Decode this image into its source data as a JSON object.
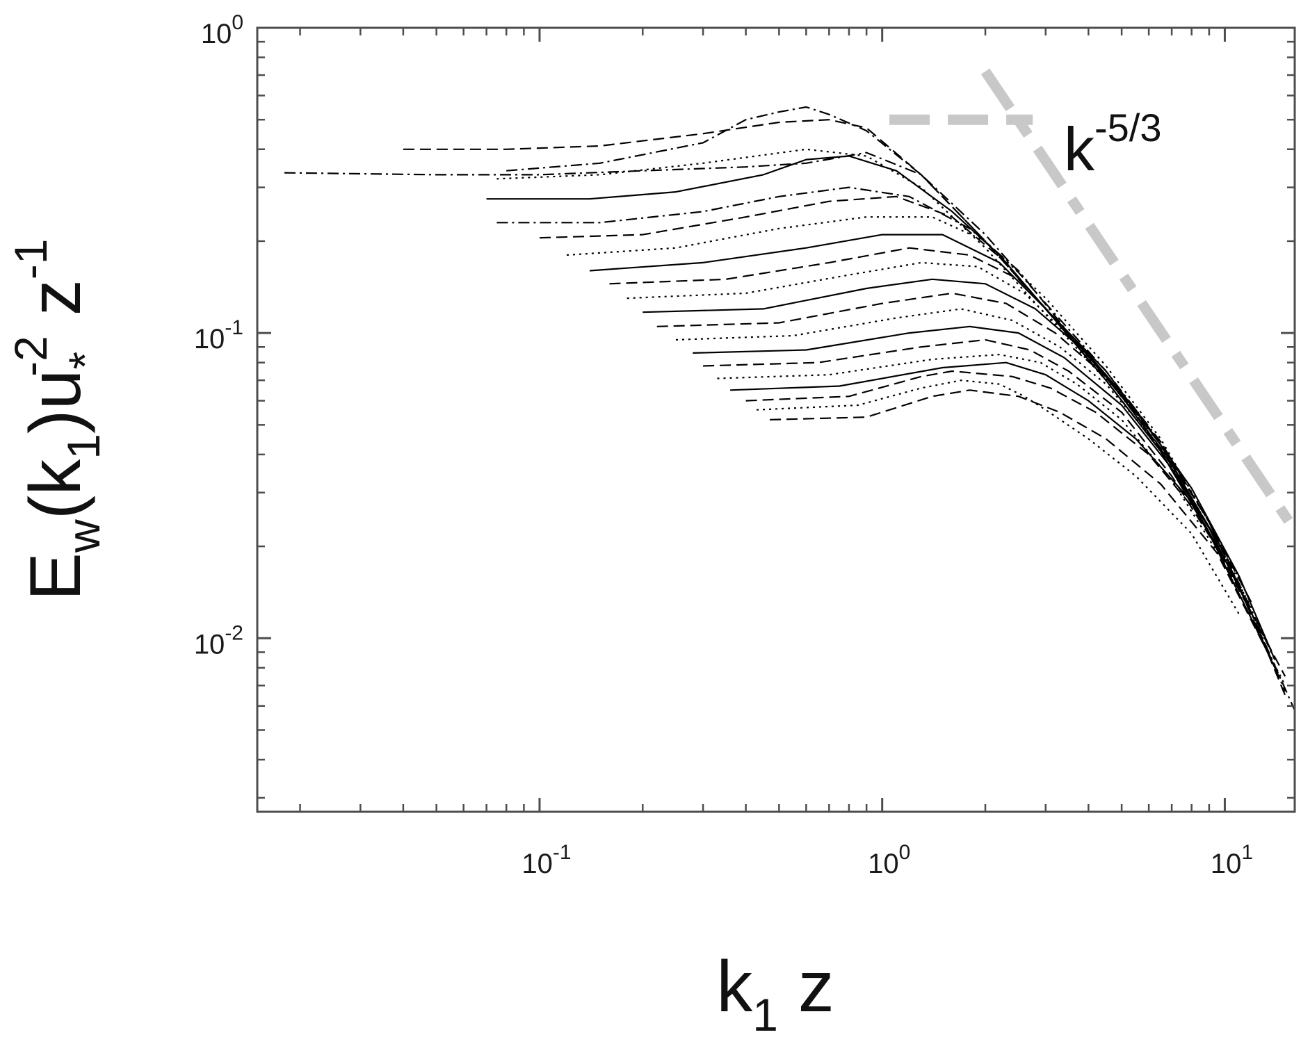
{
  "chart_data": {
    "type": "line",
    "x_scale": "log",
    "y_scale": "log",
    "xlim": [
      0.015,
      16
    ],
    "ylim": [
      0.0027,
      1
    ],
    "x_ticks": [
      {
        "value": 0.1,
        "base": "10",
        "exp": "-1"
      },
      {
        "value": 1,
        "base": "10",
        "exp": "0"
      },
      {
        "value": 10,
        "base": "10",
        "exp": "1"
      }
    ],
    "y_ticks": [
      {
        "value": 0.01,
        "base": "10",
        "exp": "-2"
      },
      {
        "value": 0.1,
        "base": "10",
        "exp": "-1"
      },
      {
        "value": 1,
        "base": "10",
        "exp": "0"
      }
    ],
    "grid": false,
    "xlabel": {
      "main": "k",
      "sub": "1",
      "tail": " z"
    },
    "ylabel": {
      "p1": "E",
      "s1": "w",
      "p2": "(k",
      "s2": "1",
      "p3": ")u",
      "s3": "*",
      "e3": "-2",
      "p4": " z",
      "e4": "-1"
    },
    "annotation": {
      "base": "k",
      "exp": "-5/3"
    },
    "reference_line": {
      "slope": -1.6667,
      "color": "#c8c8c8",
      "points": [
        {
          "x": 2.0,
          "y": 0.72
        },
        {
          "x": 16.0,
          "y": 0.0226
        }
      ]
    },
    "reference_level": {
      "color": "#c8c8c8",
      "points": [
        {
          "x": 1.05,
          "y": 0.5
        },
        {
          "x": 2.75,
          "y": 0.5
        }
      ]
    },
    "series_color": "#000000",
    "series": [
      {
        "dash": "dashdot",
        "values": [
          [
            0.018,
            0.335
          ],
          [
            0.05,
            0.33
          ],
          [
            0.1,
            0.33
          ],
          [
            0.2,
            0.34
          ],
          [
            0.4,
            0.35
          ],
          [
            0.6,
            0.36
          ],
          [
            0.9,
            0.39
          ],
          [
            1.3,
            0.33
          ],
          [
            2.0,
            0.21
          ],
          [
            3.0,
            0.125
          ],
          [
            4.5,
            0.075
          ],
          [
            6.5,
            0.044
          ],
          [
            9.0,
            0.024
          ],
          [
            12.0,
            0.012
          ],
          [
            16.0,
            0.0058
          ]
        ]
      },
      {
        "dash": "dashed",
        "values": [
          [
            0.04,
            0.4
          ],
          [
            0.08,
            0.4
          ],
          [
            0.15,
            0.41
          ],
          [
            0.3,
            0.45
          ],
          [
            0.5,
            0.49
          ],
          [
            0.7,
            0.5
          ],
          [
            0.9,
            0.47
          ],
          [
            1.3,
            0.33
          ],
          [
            2.0,
            0.2
          ],
          [
            3.0,
            0.12
          ],
          [
            4.5,
            0.073
          ],
          [
            6.5,
            0.043
          ],
          [
            9.0,
            0.024
          ],
          [
            12.0,
            0.012
          ],
          [
            15.0,
            0.0065
          ]
        ]
      },
      {
        "dash": "dashdot",
        "values": [
          [
            0.08,
            0.34
          ],
          [
            0.15,
            0.36
          ],
          [
            0.3,
            0.42
          ],
          [
            0.4,
            0.5
          ],
          [
            0.5,
            0.53
          ],
          [
            0.6,
            0.55
          ],
          [
            0.7,
            0.52
          ],
          [
            0.9,
            0.46
          ],
          [
            1.3,
            0.33
          ],
          [
            2.0,
            0.2
          ],
          [
            3.0,
            0.12
          ],
          [
            4.5,
            0.072
          ],
          [
            6.5,
            0.042
          ],
          [
            9.0,
            0.023
          ],
          [
            12.0,
            0.012
          ],
          [
            15.0,
            0.0067
          ]
        ]
      },
      {
        "dash": "dotted",
        "values": [
          [
            0.075,
            0.32
          ],
          [
            0.15,
            0.33
          ],
          [
            0.3,
            0.36
          ],
          [
            0.6,
            0.4
          ],
          [
            0.9,
            0.38
          ],
          [
            1.3,
            0.3
          ],
          [
            2.0,
            0.19
          ],
          [
            3.0,
            0.115
          ],
          [
            4.5,
            0.07
          ],
          [
            6.5,
            0.041
          ],
          [
            9.0,
            0.022
          ],
          [
            12.0,
            0.0115
          ],
          [
            15.0,
            0.007
          ]
        ]
      },
      {
        "dash": "solid",
        "values": [
          [
            0.07,
            0.275
          ],
          [
            0.14,
            0.275
          ],
          [
            0.25,
            0.29
          ],
          [
            0.45,
            0.33
          ],
          [
            0.6,
            0.37
          ],
          [
            0.8,
            0.38
          ],
          [
            1.1,
            0.34
          ],
          [
            1.6,
            0.25
          ],
          [
            2.2,
            0.18
          ],
          [
            3.0,
            0.12
          ],
          [
            4.5,
            0.07
          ],
          [
            6.5,
            0.041
          ],
          [
            9.0,
            0.022
          ],
          [
            12.0,
            0.0115
          ],
          [
            14.0,
            0.008
          ]
        ]
      },
      {
        "dash": "dashdot",
        "values": [
          [
            0.075,
            0.23
          ],
          [
            0.15,
            0.23
          ],
          [
            0.3,
            0.25
          ],
          [
            0.5,
            0.28
          ],
          [
            0.8,
            0.3
          ],
          [
            1.2,
            0.28
          ],
          [
            1.8,
            0.22
          ],
          [
            2.5,
            0.16
          ],
          [
            3.5,
            0.1
          ],
          [
            5.0,
            0.062
          ],
          [
            7.0,
            0.037
          ],
          [
            10.0,
            0.019
          ],
          [
            14.0,
            0.0085
          ]
        ]
      },
      {
        "dash": "dashed",
        "values": [
          [
            0.1,
            0.205
          ],
          [
            0.2,
            0.21
          ],
          [
            0.4,
            0.24
          ],
          [
            0.7,
            0.27
          ],
          [
            1.1,
            0.28
          ],
          [
            1.6,
            0.24
          ],
          [
            2.3,
            0.17
          ],
          [
            3.2,
            0.11
          ],
          [
            4.5,
            0.07
          ],
          [
            6.5,
            0.041
          ],
          [
            9.0,
            0.022
          ],
          [
            12.0,
            0.012
          ],
          [
            15.0,
            0.0075
          ]
        ]
      },
      {
        "dash": "dotted",
        "values": [
          [
            0.12,
            0.18
          ],
          [
            0.25,
            0.19
          ],
          [
            0.5,
            0.22
          ],
          [
            0.9,
            0.24
          ],
          [
            1.4,
            0.24
          ],
          [
            2.0,
            0.2
          ],
          [
            3.0,
            0.13
          ],
          [
            4.5,
            0.078
          ],
          [
            6.5,
            0.045
          ],
          [
            9.0,
            0.024
          ],
          [
            12.0,
            0.013
          ]
        ]
      },
      {
        "dash": "solid",
        "values": [
          [
            0.14,
            0.16
          ],
          [
            0.3,
            0.17
          ],
          [
            0.6,
            0.19
          ],
          [
            1.0,
            0.21
          ],
          [
            1.5,
            0.21
          ],
          [
            2.2,
            0.17
          ],
          [
            3.0,
            0.12
          ],
          [
            4.5,
            0.075
          ],
          [
            6.5,
            0.043
          ],
          [
            9.0,
            0.023
          ],
          [
            12.0,
            0.012
          ]
        ]
      },
      {
        "dash": "dashed",
        "values": [
          [
            0.16,
            0.145
          ],
          [
            0.35,
            0.15
          ],
          [
            0.7,
            0.17
          ],
          [
            1.2,
            0.19
          ],
          [
            1.8,
            0.18
          ],
          [
            2.5,
            0.15
          ],
          [
            3.5,
            0.1
          ],
          [
            5.0,
            0.063
          ],
          [
            7.0,
            0.037
          ],
          [
            10.0,
            0.019
          ],
          [
            13.0,
            0.0095
          ]
        ]
      },
      {
        "dash": "dotted",
        "values": [
          [
            0.18,
            0.13
          ],
          [
            0.4,
            0.135
          ],
          [
            0.8,
            0.155
          ],
          [
            1.3,
            0.17
          ],
          [
            1.9,
            0.165
          ],
          [
            2.6,
            0.135
          ],
          [
            3.6,
            0.095
          ],
          [
            5.0,
            0.062
          ],
          [
            7.0,
            0.037
          ],
          [
            10.0,
            0.019
          ]
        ]
      },
      {
        "dash": "solid",
        "values": [
          [
            0.2,
            0.117
          ],
          [
            0.45,
            0.12
          ],
          [
            0.9,
            0.14
          ],
          [
            1.4,
            0.15
          ],
          [
            2.0,
            0.145
          ],
          [
            2.8,
            0.12
          ],
          [
            4.0,
            0.085
          ],
          [
            5.5,
            0.056
          ],
          [
            8.0,
            0.031
          ],
          [
            11.0,
            0.016
          ],
          [
            14.0,
            0.0085
          ]
        ]
      },
      {
        "dash": "dashed",
        "values": [
          [
            0.22,
            0.105
          ],
          [
            0.5,
            0.108
          ],
          [
            1.0,
            0.125
          ],
          [
            1.6,
            0.135
          ],
          [
            2.3,
            0.125
          ],
          [
            3.2,
            0.1
          ],
          [
            4.5,
            0.072
          ],
          [
            6.5,
            0.044
          ],
          [
            9.0,
            0.024
          ],
          [
            12.0,
            0.013
          ]
        ]
      },
      {
        "dash": "dotted",
        "values": [
          [
            0.25,
            0.095
          ],
          [
            0.55,
            0.098
          ],
          [
            1.1,
            0.112
          ],
          [
            1.7,
            0.12
          ],
          [
            2.4,
            0.11
          ],
          [
            3.3,
            0.09
          ],
          [
            4.5,
            0.068
          ],
          [
            6.5,
            0.042
          ],
          [
            9.0,
            0.023
          ],
          [
            12.0,
            0.0125
          ]
        ]
      },
      {
        "dash": "solid",
        "values": [
          [
            0.28,
            0.086
          ],
          [
            0.6,
            0.088
          ],
          [
            1.2,
            0.1
          ],
          [
            1.8,
            0.105
          ],
          [
            2.5,
            0.1
          ],
          [
            3.4,
            0.083
          ],
          [
            5.0,
            0.058
          ],
          [
            7.0,
            0.036
          ],
          [
            10.0,
            0.019
          ]
        ]
      },
      {
        "dash": "dashed",
        "values": [
          [
            0.3,
            0.078
          ],
          [
            0.65,
            0.08
          ],
          [
            1.3,
            0.09
          ],
          [
            2.0,
            0.095
          ],
          [
            2.7,
            0.088
          ],
          [
            3.5,
            0.075
          ],
          [
            5.0,
            0.055
          ],
          [
            7.0,
            0.034
          ],
          [
            10.0,
            0.018
          ]
        ]
      },
      {
        "dash": "dotted",
        "values": [
          [
            0.33,
            0.071
          ],
          [
            0.7,
            0.073
          ],
          [
            1.4,
            0.082
          ],
          [
            2.2,
            0.085
          ],
          [
            2.9,
            0.08
          ],
          [
            3.7,
            0.068
          ],
          [
            5.0,
            0.052
          ],
          [
            7.0,
            0.033
          ],
          [
            10.0,
            0.0175
          ]
        ]
      },
      {
        "dash": "solid",
        "values": [
          [
            0.36,
            0.065
          ],
          [
            0.75,
            0.067
          ],
          [
            1.5,
            0.077
          ],
          [
            2.3,
            0.08
          ],
          [
            3.0,
            0.073
          ],
          [
            4.0,
            0.06
          ],
          [
            5.5,
            0.045
          ],
          [
            8.0,
            0.028
          ],
          [
            11.0,
            0.015
          ]
        ]
      },
      {
        "dash": "dashed",
        "values": [
          [
            0.4,
            0.06
          ],
          [
            0.8,
            0.062
          ],
          [
            1.3,
            0.072
          ],
          [
            1.6,
            0.075
          ],
          [
            2.4,
            0.072
          ],
          [
            3.1,
            0.066
          ],
          [
            4.2,
            0.055
          ],
          [
            6.0,
            0.04
          ],
          [
            8.5,
            0.025
          ],
          [
            11.5,
            0.0135
          ]
        ]
      },
      {
        "dash": "dotted",
        "values": [
          [
            0.43,
            0.056
          ],
          [
            0.85,
            0.058
          ],
          [
            1.3,
            0.066
          ],
          [
            1.7,
            0.07
          ],
          [
            2.2,
            0.068
          ],
          [
            2.6,
            0.062
          ],
          [
            3.0,
            0.056
          ],
          [
            4.0,
            0.045
          ],
          [
            5.5,
            0.034
          ],
          [
            8.0,
            0.022
          ],
          [
            11.0,
            0.012
          ]
        ]
      },
      {
        "dash": "dashed",
        "values": [
          [
            0.47,
            0.052
          ],
          [
            0.9,
            0.053
          ],
          [
            1.4,
            0.062
          ],
          [
            1.8,
            0.065
          ],
          [
            2.5,
            0.062
          ],
          [
            3.3,
            0.055
          ],
          [
            4.5,
            0.045
          ],
          [
            6.5,
            0.032
          ],
          [
            9.5,
            0.019
          ],
          [
            13.0,
            0.0095
          ]
        ]
      }
    ]
  }
}
